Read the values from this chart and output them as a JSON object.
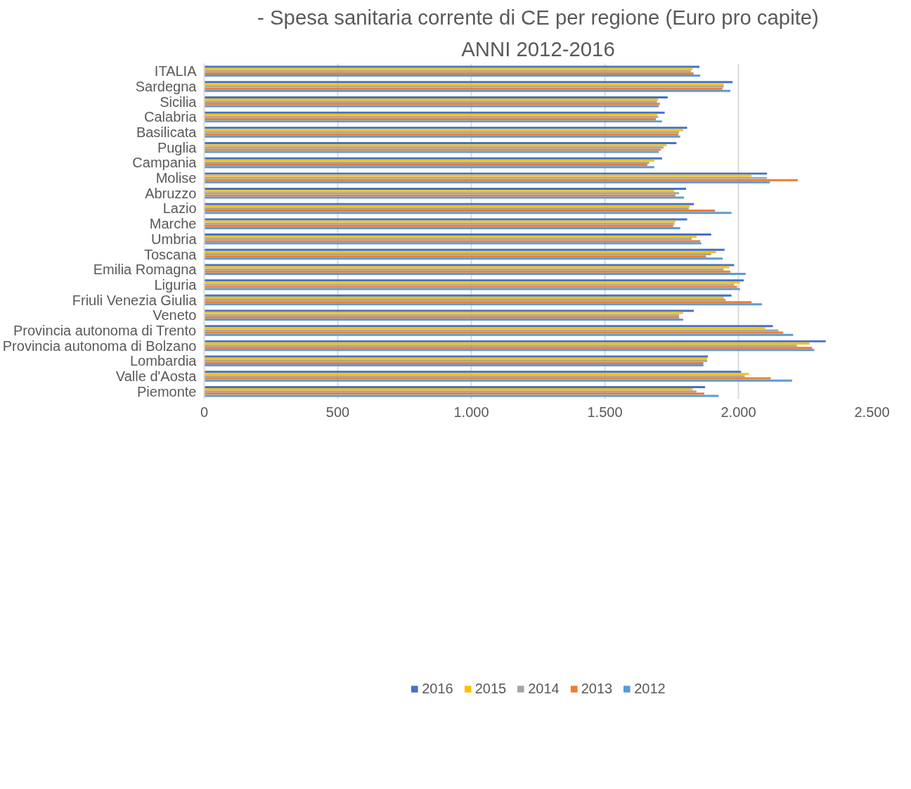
{
  "chart_data": {
    "type": "bar",
    "orientation": "horizontal",
    "title": "- Spesa sanitaria corrente di CE per regione (Euro pro capite)",
    "subtitle": "ANNI 2012-2016",
    "categories": [
      "ITALIA",
      "Sardegna",
      "Sicilia",
      "Calabria",
      "Basilicata",
      "Puglia",
      "Campania",
      "Molise",
      "Abruzzo",
      "Lazio",
      "Marche",
      "Umbria",
      "Toscana",
      "Emilia Romagna",
      "Liguria",
      "Friuli Venezia Giulia",
      "Veneto",
      "Provincia autonoma di Trento",
      "Provincia autonoma di Bolzano",
      "Lombardia",
      "Valle d'Aosta",
      "Piemonte"
    ],
    "series": [
      {
        "name": "2016",
        "color": "#4472c4",
        "values": [
          1854,
          1978,
          1735,
          1724,
          1808,
          1768,
          1714,
          2107,
          1804,
          1833,
          1808,
          1898,
          1948,
          1984,
          2020,
          1974,
          1833,
          2129,
          2327,
          1886,
          2010,
          1875
        ]
      },
      {
        "name": "2015",
        "color": "#ffc000",
        "values": [
          1828,
          1945,
          1699,
          1696,
          1793,
          1731,
          1685,
          2049,
          1760,
          1818,
          1764,
          1843,
          1916,
          1966,
          2006,
          1945,
          1793,
          2100,
          2266,
          1883,
          2039,
          1829
        ]
      },
      {
        "name": "2014",
        "color": "#a5a5a5",
        "values": [
          1822,
          1945,
          1695,
          1699,
          1778,
          1720,
          1666,
          2107,
          1778,
          1814,
          1760,
          1825,
          1898,
          1945,
          1984,
          1952,
          1778,
          2150,
          2219,
          1883,
          2024,
          1843
        ]
      },
      {
        "name": "2013",
        "color": "#ed7d31",
        "values": [
          1832,
          1940,
          1706,
          1691,
          1775,
          1710,
          1659,
          2222,
          1764,
          1912,
          1756,
          1857,
          1879,
          1970,
          1995,
          2049,
          1778,
          2168,
          2276,
          1869,
          2121,
          1872
        ]
      },
      {
        "name": "2012",
        "color": "#5b9bd5",
        "values": [
          1857,
          1970,
          1702,
          1714,
          1782,
          1702,
          1685,
          2118,
          1796,
          1974,
          1782,
          1861,
          1941,
          2027,
          2006,
          2088,
          1793,
          2205,
          2284,
          1869,
          2201,
          1926
        ]
      }
    ],
    "xlim": [
      0,
      2500
    ],
    "xticks": [
      0,
      500,
      {
        "value": 1000,
        "label": "1.000"
      },
      {
        "value": 1500,
        "label": "1.500"
      },
      {
        "value": 2000,
        "label": "2.000"
      },
      {
        "value": 2500,
        "label": "2.500"
      }
    ],
    "grid": "x",
    "legend": "bottom"
  }
}
